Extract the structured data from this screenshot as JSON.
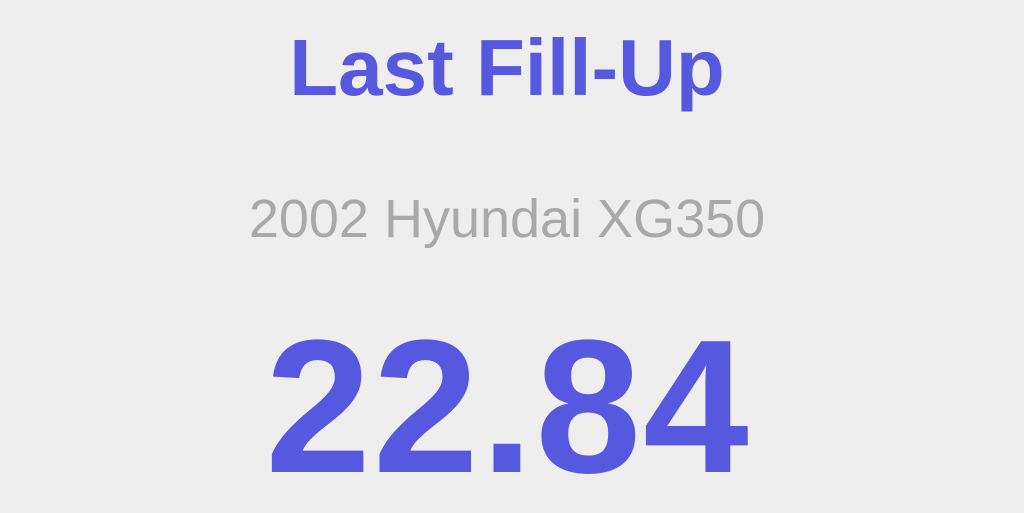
{
  "header": {
    "title": "Last Fill-Up"
  },
  "vehicle": {
    "name": "2002 Hyundai XG350"
  },
  "fill_up": {
    "value": "22.84"
  },
  "colors": {
    "background": "#eeeeee",
    "accent": "#5658e0",
    "secondary_text": "#a9a9a9"
  }
}
